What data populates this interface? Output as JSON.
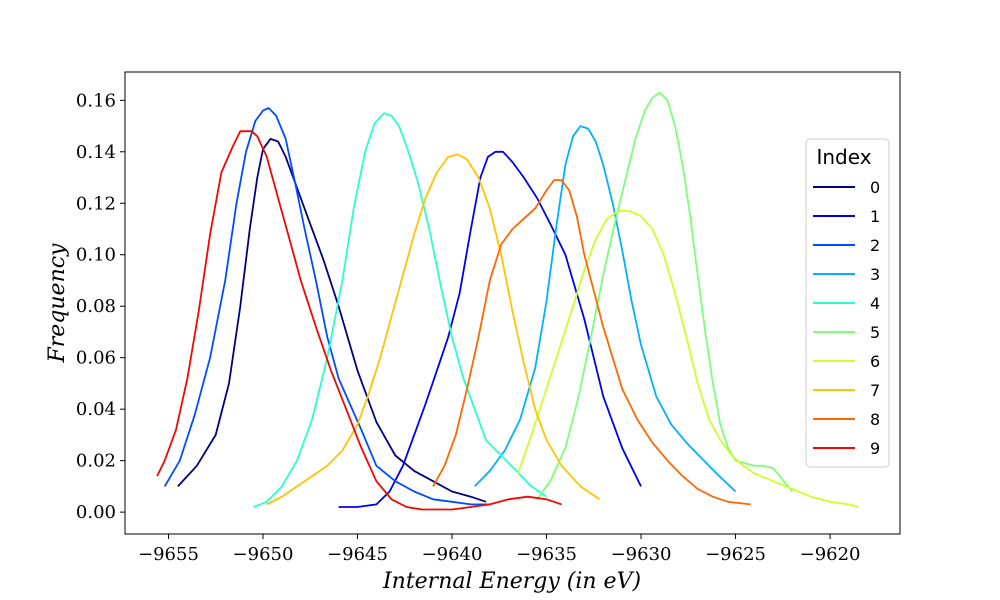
{
  "chart_data": {
    "type": "line",
    "title": "",
    "xlabel": "Internal Energy (in eV)",
    "ylabel": "Frequency",
    "xlim": [
      -9657.3,
      -9616.3
    ],
    "ylim": [
      -0.0085,
      0.171
    ],
    "xticks": [
      -9655,
      -9650,
      -9645,
      -9640,
      -9635,
      -9630,
      -9625,
      -9620
    ],
    "xtick_labels": [
      "−9655",
      "−9650",
      "−9645",
      "−9640",
      "−9635",
      "−9630",
      "−9625",
      "−9620"
    ],
    "yticks": [
      0.0,
      0.02,
      0.04,
      0.06,
      0.08,
      0.1,
      0.12,
      0.14,
      0.16
    ],
    "ytick_labels": [
      "0.00",
      "0.02",
      "0.04",
      "0.06",
      "0.08",
      "0.10",
      "0.12",
      "0.14",
      "0.16"
    ],
    "grid": false,
    "legend": {
      "title": "Index",
      "placement": "right"
    },
    "series": [
      {
        "name": "0",
        "color": "#000080",
        "x": [
          -9654.5,
          -9653.5,
          -9652.5,
          -9651.8,
          -9651.2,
          -9650.7,
          -9650.3,
          -9650.0,
          -9649.6,
          -9649.2,
          -9648.8,
          -9648.2,
          -9647.5,
          -9646.8,
          -9646.0,
          -9645.0,
          -9644.0,
          -9643.0,
          -9642.0,
          -9641.0,
          -9640.0,
          -9639.0,
          -9638.2
        ],
        "y": [
          0.01,
          0.018,
          0.03,
          0.05,
          0.08,
          0.11,
          0.13,
          0.141,
          0.145,
          0.144,
          0.138,
          0.126,
          0.112,
          0.098,
          0.08,
          0.055,
          0.035,
          0.022,
          0.016,
          0.012,
          0.008,
          0.006,
          0.004
        ]
      },
      {
        "name": "1",
        "color": "#0000f1",
        "x": [
          -9646.0,
          -9645.0,
          -9644.0,
          -9643.3,
          -9642.6,
          -9642.0,
          -9641.4,
          -9640.8,
          -9640.2,
          -9639.6,
          -9639.0,
          -9638.5,
          -9638.1,
          -9637.7,
          -9637.3,
          -9636.8,
          -9636.2,
          -9635.5,
          -9634.8,
          -9634.0,
          -9633.0,
          -9632.0,
          -9631.0,
          -9630.0
        ],
        "y": [
          0.002,
          0.002,
          0.003,
          0.008,
          0.018,
          0.03,
          0.042,
          0.055,
          0.068,
          0.085,
          0.11,
          0.13,
          0.138,
          0.14,
          0.14,
          0.136,
          0.13,
          0.122,
          0.112,
          0.1,
          0.075,
          0.045,
          0.025,
          0.01
        ]
      },
      {
        "name": "2",
        "color": "#004dff",
        "x": [
          -9655.2,
          -9654.4,
          -9653.6,
          -9652.8,
          -9652.0,
          -9651.4,
          -9650.9,
          -9650.4,
          -9650.0,
          -9649.7,
          -9649.3,
          -9648.8,
          -9648.3,
          -9647.8,
          -9647.2,
          -9646.6,
          -9646.0,
          -9645.4,
          -9644.8,
          -9644.0,
          -9643.0,
          -9642.0,
          -9641.0,
          -9640.0,
          -9639.0,
          -9638.0
        ],
        "y": [
          0.01,
          0.02,
          0.038,
          0.06,
          0.09,
          0.12,
          0.14,
          0.152,
          0.156,
          0.157,
          0.154,
          0.145,
          0.128,
          0.11,
          0.09,
          0.068,
          0.052,
          0.042,
          0.032,
          0.018,
          0.012,
          0.008,
          0.005,
          0.004,
          0.003,
          0.003
        ]
      },
      {
        "name": "3",
        "color": "#00b1ff",
        "x": [
          -9638.8,
          -9638.0,
          -9637.2,
          -9636.4,
          -9635.6,
          -9635.0,
          -9634.5,
          -9634.0,
          -9633.6,
          -9633.2,
          -9632.8,
          -9632.4,
          -9632.0,
          -9631.5,
          -9631.0,
          -9630.5,
          -9630.0,
          -9629.2,
          -9628.4,
          -9627.6,
          -9626.8,
          -9626.0,
          -9625.0
        ],
        "y": [
          0.01,
          0.016,
          0.024,
          0.036,
          0.056,
          0.082,
          0.11,
          0.135,
          0.146,
          0.15,
          0.149,
          0.144,
          0.135,
          0.12,
          0.102,
          0.082,
          0.065,
          0.045,
          0.034,
          0.027,
          0.021,
          0.015,
          0.008
        ]
      },
      {
        "name": "4",
        "color": "#29ffce",
        "x": [
          -9650.5,
          -9649.8,
          -9649.0,
          -9648.2,
          -9647.4,
          -9646.6,
          -9645.8,
          -9645.2,
          -9644.6,
          -9644.1,
          -9643.6,
          -9643.2,
          -9642.8,
          -9642.3,
          -9641.8,
          -9641.2,
          -9640.6,
          -9640.0,
          -9639.4,
          -9638.8,
          -9638.2,
          -9637.4,
          -9636.6,
          -9635.8,
          -9635.0
        ],
        "y": [
          0.002,
          0.004,
          0.01,
          0.02,
          0.036,
          0.06,
          0.09,
          0.118,
          0.14,
          0.151,
          0.155,
          0.154,
          0.15,
          0.14,
          0.128,
          0.11,
          0.088,
          0.068,
          0.052,
          0.04,
          0.028,
          0.022,
          0.016,
          0.01,
          0.006
        ]
      },
      {
        "name": "5",
        "color": "#7dff7a",
        "x": [
          -9635.5,
          -9634.8,
          -9634.0,
          -9633.3,
          -9632.6,
          -9632.0,
          -9631.4,
          -9630.8,
          -9630.3,
          -9629.8,
          -9629.4,
          -9629.0,
          -9628.6,
          -9628.2,
          -9627.8,
          -9627.4,
          -9627.0,
          -9626.6,
          -9626.2,
          -9625.8,
          -9625.4,
          -9625.0,
          -9624.5,
          -9624.0,
          -9623.5,
          -9623.0,
          -9622.0
        ],
        "y": [
          0.005,
          0.012,
          0.025,
          0.045,
          0.07,
          0.092,
          0.112,
          0.13,
          0.145,
          0.156,
          0.161,
          0.163,
          0.16,
          0.15,
          0.135,
          0.115,
          0.092,
          0.07,
          0.05,
          0.034,
          0.025,
          0.02,
          0.019,
          0.018,
          0.018,
          0.017,
          0.008
        ]
      },
      {
        "name": "6",
        "color": "#ceff29",
        "x": [
          -9636.5,
          -9635.8,
          -9635.0,
          -9634.3,
          -9633.6,
          -9633.0,
          -9632.4,
          -9631.8,
          -9631.2,
          -9630.6,
          -9630.0,
          -9629.4,
          -9628.8,
          -9628.2,
          -9627.6,
          -9627.0,
          -9626.4,
          -9625.8,
          -9625.2,
          -9624.6,
          -9624.0,
          -9623.0,
          -9622.0,
          -9621.0,
          -9620.0,
          -9619.0,
          -9618.5
        ],
        "y": [
          0.015,
          0.03,
          0.048,
          0.064,
          0.08,
          0.094,
          0.106,
          0.114,
          0.117,
          0.117,
          0.115,
          0.11,
          0.1,
          0.085,
          0.068,
          0.05,
          0.036,
          0.028,
          0.022,
          0.018,
          0.015,
          0.012,
          0.009,
          0.006,
          0.004,
          0.003,
          0.002
        ]
      },
      {
        "name": "7",
        "color": "#ffc400",
        "x": [
          -9649.8,
          -9649.0,
          -9648.2,
          -9647.4,
          -9646.6,
          -9645.8,
          -9645.0,
          -9644.4,
          -9643.8,
          -9643.2,
          -9642.6,
          -9642.0,
          -9641.4,
          -9640.8,
          -9640.2,
          -9639.7,
          -9639.2,
          -9638.6,
          -9638.0,
          -9637.4,
          -9636.8,
          -9636.2,
          -9635.6,
          -9635.0,
          -9634.2,
          -9633.2,
          -9632.2
        ],
        "y": [
          0.003,
          0.006,
          0.01,
          0.014,
          0.018,
          0.024,
          0.034,
          0.046,
          0.06,
          0.076,
          0.092,
          0.108,
          0.122,
          0.132,
          0.138,
          0.139,
          0.137,
          0.13,
          0.118,
          0.1,
          0.078,
          0.058,
          0.04,
          0.028,
          0.018,
          0.01,
          0.005
        ]
      },
      {
        "name": "8",
        "color": "#ff6800",
        "x": [
          -9641.0,
          -9640.4,
          -9639.8,
          -9639.2,
          -9638.6,
          -9638.0,
          -9637.4,
          -9636.8,
          -9636.2,
          -9635.6,
          -9635.0,
          -9634.6,
          -9634.2,
          -9633.8,
          -9633.4,
          -9633.0,
          -9632.5,
          -9632.0,
          -9631.5,
          -9631.0,
          -9630.2,
          -9629.4,
          -9628.6,
          -9627.8,
          -9627.0,
          -9626.2,
          -9625.4,
          -9624.2
        ],
        "y": [
          0.01,
          0.018,
          0.03,
          0.048,
          0.068,
          0.09,
          0.104,
          0.11,
          0.114,
          0.118,
          0.125,
          0.129,
          0.129,
          0.125,
          0.115,
          0.1,
          0.086,
          0.072,
          0.06,
          0.048,
          0.036,
          0.027,
          0.02,
          0.014,
          0.009,
          0.006,
          0.004,
          0.003
        ]
      },
      {
        "name": "9",
        "color": "#f10800",
        "x": [
          -9655.6,
          -9655.2,
          -9654.6,
          -9654.0,
          -9653.4,
          -9652.8,
          -9652.2,
          -9651.6,
          -9651.2,
          -9650.9,
          -9650.6,
          -9650.3,
          -9649.8,
          -9649.2,
          -9648.6,
          -9648.0,
          -9647.2,
          -9646.4,
          -9645.6,
          -9644.8,
          -9644.0,
          -9643.2,
          -9642.4,
          -9641.6,
          -9640.8,
          -9640.0,
          -9639.0,
          -9638.0,
          -9637.0,
          -9636.0,
          -9635.0,
          -9634.2
        ],
        "y": [
          0.014,
          0.02,
          0.032,
          0.052,
          0.078,
          0.108,
          0.132,
          0.142,
          0.148,
          0.148,
          0.148,
          0.146,
          0.138,
          0.122,
          0.106,
          0.09,
          0.072,
          0.055,
          0.04,
          0.025,
          0.012,
          0.005,
          0.002,
          0.001,
          0.001,
          0.001,
          0.002,
          0.003,
          0.005,
          0.006,
          0.005,
          0.003
        ]
      }
    ]
  }
}
